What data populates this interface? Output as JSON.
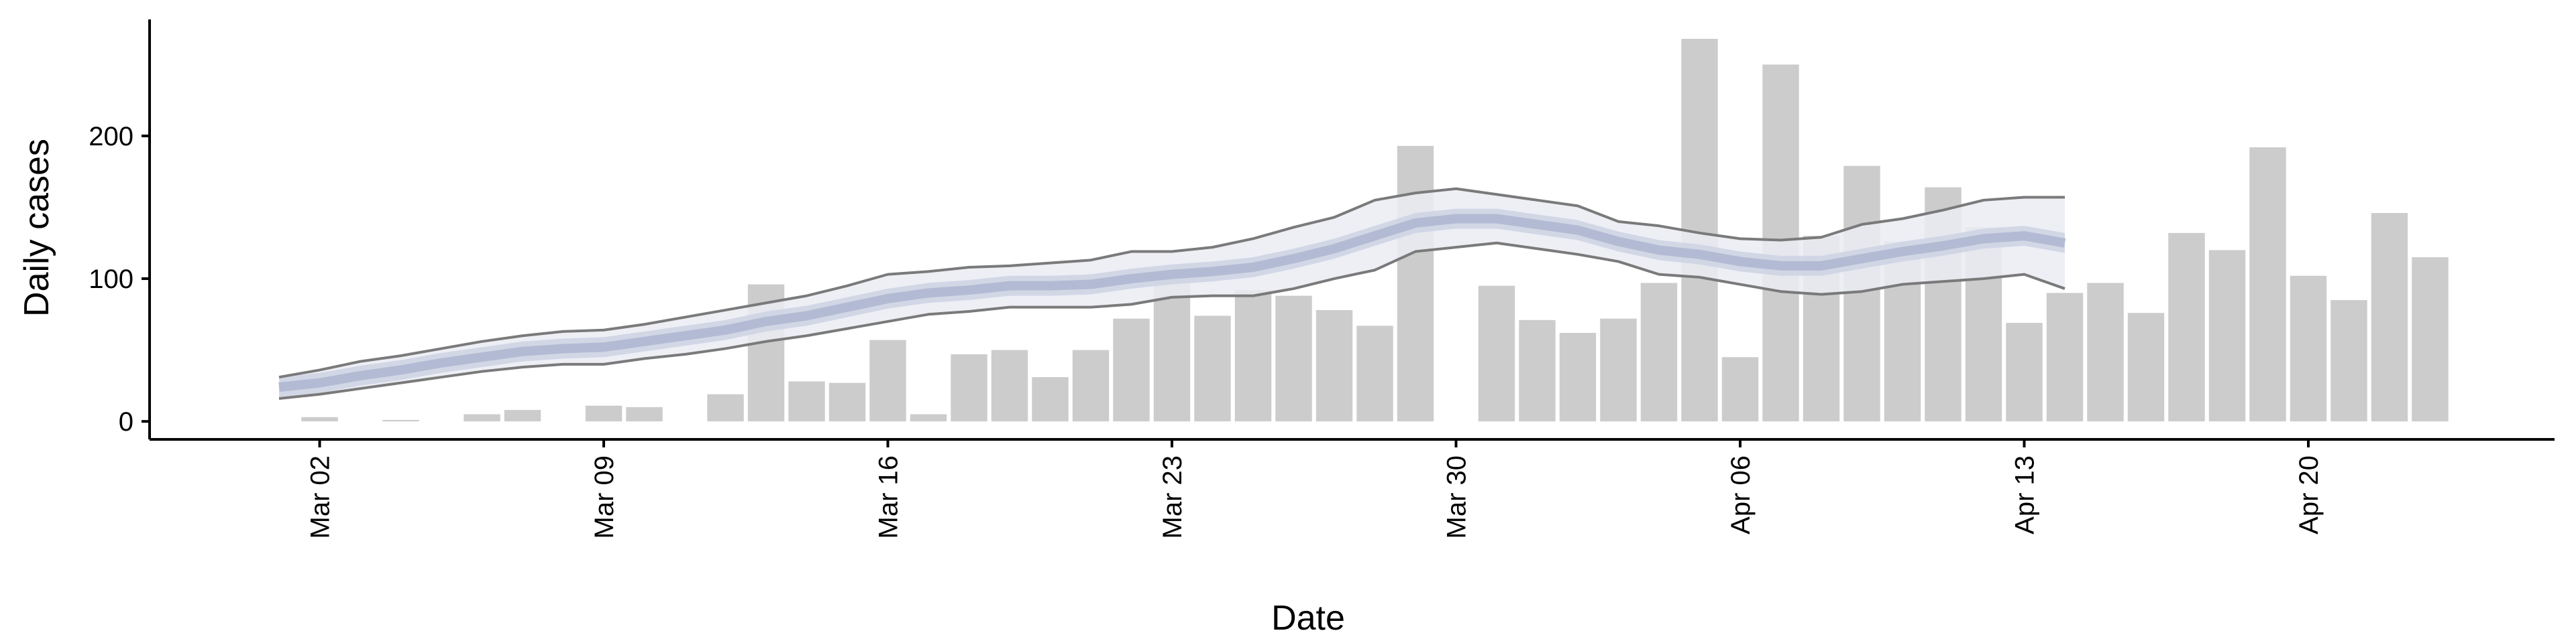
{
  "chart_data": {
    "type": "bar",
    "xlabel": "Date",
    "ylabel": "Daily cases",
    "categories": [
      null,
      "Mar 02",
      null,
      null,
      null,
      null,
      null,
      null,
      "Mar 09",
      null,
      null,
      null,
      null,
      null,
      null,
      "Mar 16",
      null,
      null,
      null,
      null,
      null,
      null,
      "Mar 23",
      null,
      null,
      null,
      null,
      null,
      null,
      "Mar 30",
      null,
      null,
      null,
      null,
      null,
      null,
      "Apr 06",
      null,
      null,
      null,
      null,
      null,
      null,
      "Apr 13",
      null,
      null,
      null,
      null,
      null,
      null,
      "Apr 20",
      null,
      null,
      null
    ],
    "values": [
      null,
      3,
      null,
      1,
      null,
      5,
      8,
      null,
      11,
      10,
      null,
      19,
      96,
      28,
      27,
      57,
      5,
      47,
      50,
      31,
      50,
      72,
      105,
      74,
      92,
      88,
      78,
      67,
      193,
      null,
      95,
      71,
      62,
      72,
      97,
      268,
      45,
      250,
      130,
      179,
      126,
      164,
      136,
      69,
      90,
      97,
      76,
      132,
      120,
      192,
      102,
      85,
      146,
      115
    ],
    "color": "#cccccc",
    "ylim": [
      -12.6,
      281.6
    ],
    "yticks": [
      0,
      100,
      200
    ],
    "interval": {
      "color": "#eaecf3",
      "line_color": "#7a7a7a",
      "lower": [
        16,
        19,
        23,
        27,
        31,
        35,
        38,
        40,
        40,
        44,
        47,
        51,
        56,
        60,
        65,
        70,
        75,
        77,
        80,
        80,
        80,
        82,
        87,
        88,
        88,
        93,
        100,
        106,
        119,
        122,
        125,
        121,
        117,
        112,
        103,
        101,
        96,
        91,
        89,
        91,
        96,
        98,
        100,
        103,
        93,
        null,
        null,
        null,
        null,
        null,
        null,
        null,
        null,
        null
      ],
      "upper": [
        31,
        36,
        42,
        46,
        51,
        56,
        60,
        63,
        64,
        68,
        73,
        78,
        83,
        88,
        95,
        103,
        105,
        108,
        109,
        111,
        113,
        119,
        119,
        122,
        128,
        136,
        143,
        155,
        160,
        163,
        159,
        155,
        151,
        140,
        137,
        132,
        128,
        127,
        129,
        138,
        142,
        148,
        155,
        157,
        157,
        null,
        null,
        null,
        null,
        null,
        null,
        null,
        null,
        null
      ]
    },
    "inner": {
      "color": "#cdd2e3",
      "lower": [
        17,
        20,
        25,
        29,
        34,
        38,
        42,
        44,
        45,
        49,
        53,
        57,
        63,
        67,
        73,
        79,
        83,
        85,
        88,
        88,
        89,
        93,
        96,
        98,
        101,
        107,
        114,
        123,
        132,
        135,
        135,
        131,
        127,
        119,
        113,
        110,
        105,
        102,
        102,
        107,
        112,
        116,
        121,
        123,
        118,
        null,
        null,
        null,
        null,
        null,
        null,
        null,
        null,
        null
      ],
      "upper": [
        31,
        34,
        39,
        43,
        48,
        52,
        56,
        58,
        59,
        63,
        67,
        71,
        77,
        81,
        87,
        93,
        97,
        99,
        102,
        102,
        103,
        107,
        110,
        112,
        115,
        121,
        128,
        137,
        146,
        149,
        149,
        145,
        141,
        133,
        127,
        124,
        119,
        116,
        116,
        121,
        126,
        130,
        135,
        137,
        132,
        null,
        null,
        null,
        null,
        null,
        null,
        null,
        null,
        null
      ]
    },
    "median": {
      "color": "#b3bbd4",
      "values": [
        24,
        27,
        32,
        36,
        41,
        45,
        49,
        51,
        52,
        56,
        60,
        64,
        70,
        74,
        80,
        86,
        90,
        92,
        95,
        95,
        96,
        100,
        103,
        105,
        108,
        114,
        121,
        130,
        139,
        142,
        142,
        138,
        134,
        126,
        120,
        117,
        112,
        109,
        109,
        114,
        119,
        123,
        128,
        130,
        125,
        null,
        null,
        null,
        null,
        null,
        null,
        null,
        null,
        null
      ]
    }
  }
}
